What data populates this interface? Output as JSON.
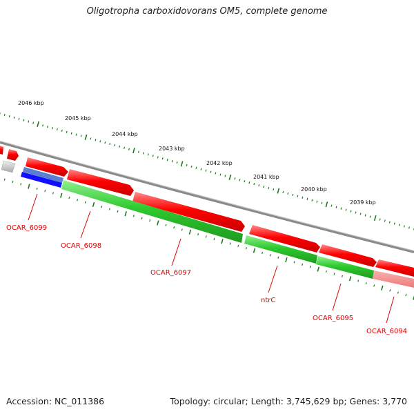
{
  "title": "Oligotropha carboxidovorans OM5, complete genome",
  "footer": {
    "accession": "Accession: NC_011386",
    "summary": "Topology: circular; Length: 3,745,629 bp; Genes: 3,770"
  },
  "colors": {
    "forward_gene": "#ff0000",
    "reverse_gene": "#22c322",
    "selected_gene": "#1010ff",
    "pseudo_gene": "#f08080",
    "backbone": "#808080",
    "tick": "#1a7a1a",
    "label": "#e00000"
  },
  "scale_labels": [
    "2046 kbp",
    "2045 kbp",
    "2044 kbp",
    "2043 kbp",
    "2042 kbp",
    "2041 kbp",
    "2040 kbp",
    "2039 kbp"
  ],
  "gene_labels": [
    "OCAR_6099",
    "OCAR_6098",
    "OCAR_6097",
    "ntrC",
    "OCAR_6095",
    "OCAR_6094"
  ]
}
